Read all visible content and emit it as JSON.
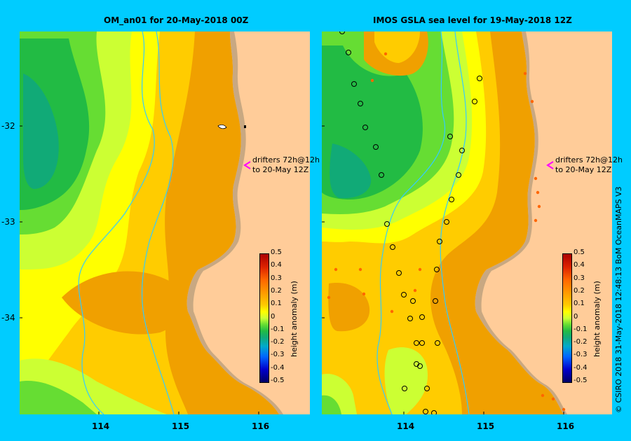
{
  "panels": [
    {
      "title": "OM_an01  for 20-May-2018 00Z"
    },
    {
      "title": "IMOS  GSLA sea level   for 19-May-2018 12Z"
    }
  ],
  "lat_labels": [
    "-32",
    "-33",
    "-34"
  ],
  "lon_labels": [
    "114",
    "115",
    "116"
  ],
  "drifters_line1": "drifters 72h@12h",
  "drifters_line2": "to 20-May 12Z",
  "colorbar": {
    "label": "height anomaly (m)",
    "ticks": [
      "0.5",
      "0.4",
      "0.3",
      "0.2",
      "0.1",
      "0",
      "-0.1",
      "-0.2",
      "-0.3",
      "-0.4",
      "-0.5"
    ]
  },
  "credit": "© CSIRO 2018   31-May-2018 12:48:13 BoM OceanMAPS V3",
  "colors": {
    "background": "#00ccff",
    "ocean_high": "#ff9900",
    "land": "#ffcc99",
    "coast_shelf": "#c8a882",
    "isobath": "#33ccff"
  }
}
